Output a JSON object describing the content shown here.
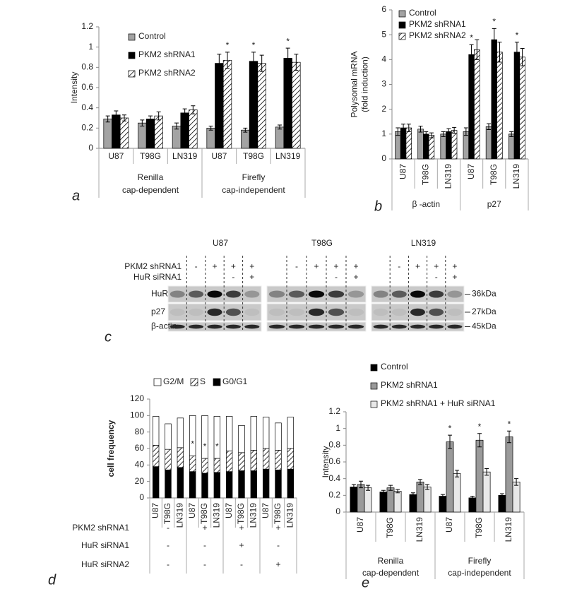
{
  "chart_data": [
    {
      "type": "bar",
      "panel_label": "a",
      "y_label": [
        "Intensity"
      ],
      "categories": [
        "U87",
        "T98G",
        "LN319",
        "U87",
        "T98G",
        "LN319"
      ],
      "group_labels": [
        [
          "Renilla",
          "cap-dependent"
        ],
        [
          "Firefly",
          "cap-independent"
        ]
      ],
      "series": [
        {
          "name": "Control",
          "color": "#a3a3a3",
          "values": [
            0.29,
            0.25,
            0.22,
            0.2,
            0.18,
            0.21
          ],
          "errors": [
            0.03,
            0.03,
            0.03,
            0.02,
            0.02,
            0.02
          ]
        },
        {
          "name": "PKM2 shRNA1",
          "color": "#000000",
          "values": [
            0.33,
            0.29,
            0.35,
            0.84,
            0.86,
            0.89
          ],
          "errors": [
            0.04,
            0.03,
            0.04,
            0.09,
            0.09,
            0.1
          ]
        },
        {
          "name": "PKM2 shRNA2",
          "color": "#ffffff",
          "hatch": true,
          "values": [
            0.3,
            0.32,
            0.38,
            0.87,
            0.84,
            0.85
          ],
          "errors": [
            0.03,
            0.04,
            0.04,
            0.08,
            0.08,
            0.08
          ]
        }
      ],
      "ylim": [
        0,
        1.2
      ],
      "yticks": [
        0,
        0.2,
        0.4,
        0.6,
        0.8,
        1,
        1.2
      ],
      "grid": false,
      "annotations": [
        {
          "text": "*",
          "category": 3,
          "series": 2
        },
        {
          "text": "*",
          "category": 4,
          "series": 1
        },
        {
          "text": "*",
          "category": 5,
          "series": 1
        }
      ]
    },
    {
      "type": "bar",
      "panel_label": "b",
      "y_label": [
        "Polysomal mRNA",
        "(fold induction)"
      ],
      "categories": [
        "U87",
        "T98G",
        "LN319",
        "U87",
        "T98G",
        "LN319"
      ],
      "group_labels": [
        [
          "β -actin"
        ],
        [
          "p27"
        ]
      ],
      "rotate_labels": true,
      "series": [
        {
          "name": "Control",
          "color": "#a3a3a3",
          "values": [
            1.1,
            1.2,
            1.0,
            1.1,
            1.3,
            1.0
          ],
          "errors": [
            0.15,
            0.12,
            0.1,
            0.15,
            0.12,
            0.1
          ]
        },
        {
          "name": "PKM2 shRNA1",
          "color": "#000000",
          "values": [
            1.25,
            1.0,
            1.1,
            4.2,
            4.8,
            4.3
          ],
          "errors": [
            0.15,
            0.1,
            0.12,
            0.4,
            0.45,
            0.4
          ]
        },
        {
          "name": "PKM2 shRNA2",
          "color": "#ffffff",
          "hatch": true,
          "values": [
            1.25,
            0.95,
            1.15,
            4.4,
            4.3,
            4.1
          ],
          "errors": [
            0.15,
            0.1,
            0.12,
            0.4,
            0.4,
            0.35
          ]
        }
      ],
      "ylim": [
        0,
        6
      ],
      "yticks": [
        0,
        1,
        2,
        3,
        4,
        5,
        6
      ],
      "grid": false,
      "annotations": [
        {
          "text": "*",
          "category": 3,
          "series": 1
        },
        {
          "text": "*",
          "category": 4,
          "series": 1
        },
        {
          "text": "*",
          "category": 5,
          "series": 1
        }
      ]
    },
    {
      "type": "stacked_bar",
      "panel_label": "d",
      "y_label": [
        "cell frequency"
      ],
      "categories": [
        "U87",
        "T98G",
        "LN319",
        "U87",
        "T98G",
        "LN319",
        "U87",
        "T98G",
        "LN319",
        "U87",
        "T98G",
        "LN319"
      ],
      "rotate_labels": true,
      "series": [
        {
          "name": "G0/G1",
          "color": "#000000",
          "values": [
            38,
            34,
            37,
            32,
            30,
            31,
            32,
            33,
            33,
            35,
            34,
            35
          ]
        },
        {
          "name": "S",
          "color": "#ffffff",
          "hatch": true,
          "values": [
            26,
            25,
            24,
            19,
            18,
            17,
            25,
            22,
            25,
            25,
            24,
            25
          ]
        },
        {
          "name": "G2/M",
          "color": "#ffffff",
          "values": [
            35,
            31,
            36,
            49,
            52,
            51,
            42,
            33,
            41,
            38,
            33,
            38
          ]
        }
      ],
      "ylim": [
        0,
        120
      ],
      "yticks": [
        0,
        20,
        40,
        60,
        80,
        100,
        120
      ],
      "grid": false,
      "annotations": [
        {
          "text": "*",
          "category": 3
        },
        {
          "text": "*",
          "category": 4
        },
        {
          "text": "*",
          "category": 5
        }
      ],
      "conditions": [
        {
          "label": "PKM2 shRNA1",
          "signs": [
            "-",
            "+",
            "+",
            "+"
          ]
        },
        {
          "label": "HuR siRNA1",
          "signs": [
            "-",
            "-",
            "+",
            "-"
          ]
        },
        {
          "label": "HuR siRNA2",
          "signs": [
            "-",
            "-",
            "-",
            "+"
          ]
        }
      ]
    },
    {
      "type": "bar",
      "panel_label": "e",
      "y_label": [
        "Intensity"
      ],
      "categories": [
        "U87",
        "T98G",
        "LN319",
        "U87",
        "T98G",
        "LN319"
      ],
      "group_labels": [
        [
          "Renilla",
          "cap-dependent"
        ],
        [
          "Firefly",
          "cap-independent"
        ]
      ],
      "rotate_labels": true,
      "series": [
        {
          "name": "Control",
          "color": "#000000",
          "values": [
            0.3,
            0.24,
            0.21,
            0.19,
            0.17,
            0.2
          ],
          "errors": [
            0.03,
            0.02,
            0.02,
            0.02,
            0.02,
            0.02
          ]
        },
        {
          "name": "PKM2 shRNA1",
          "color": "#9a9a9a",
          "values": [
            0.33,
            0.29,
            0.36,
            0.84,
            0.86,
            0.9
          ],
          "errors": [
            0.04,
            0.03,
            0.03,
            0.08,
            0.08,
            0.07
          ]
        },
        {
          "name": "PKM2 shRNA1 + HuR siRNA1",
          "color": "#e8e8e8",
          "values": [
            0.29,
            0.25,
            0.3,
            0.46,
            0.48,
            0.36
          ],
          "errors": [
            0.03,
            0.02,
            0.03,
            0.04,
            0.04,
            0.04
          ]
        }
      ],
      "ylim": [
        0,
        1.2
      ],
      "yticks": [
        0,
        0.2,
        0.4,
        0.6,
        0.8,
        1,
        1.2
      ],
      "grid": false,
      "annotations": [
        {
          "text": "*",
          "category": 3,
          "series": 1
        },
        {
          "text": "*",
          "category": 4,
          "series": 1
        },
        {
          "text": "*",
          "category": 5,
          "series": 1
        }
      ]
    }
  ],
  "blot_panel": {
    "panel_label": "c",
    "row_headers": [
      "PKM2 shRNA1",
      "HuR siRNA1"
    ],
    "cell_lines": [
      {
        "name": "U87",
        "pkm2": [
          "-",
          "+",
          "+",
          "+"
        ],
        "hur": [
          "-",
          "+"
        ]
      },
      {
        "name": "T98G",
        "pkm2": [
          "-",
          "+",
          "+",
          "+"
        ],
        "hur": [
          "-",
          "+"
        ]
      },
      {
        "name": "LN319",
        "pkm2": [
          "-",
          "+",
          "+",
          "+"
        ],
        "hur": [
          "-",
          "+"
        ]
      }
    ],
    "bands": [
      "HuR",
      "p27",
      "β-actin"
    ],
    "sizes": [
      "36kDa",
      "27kDa",
      "45kDa"
    ]
  }
}
